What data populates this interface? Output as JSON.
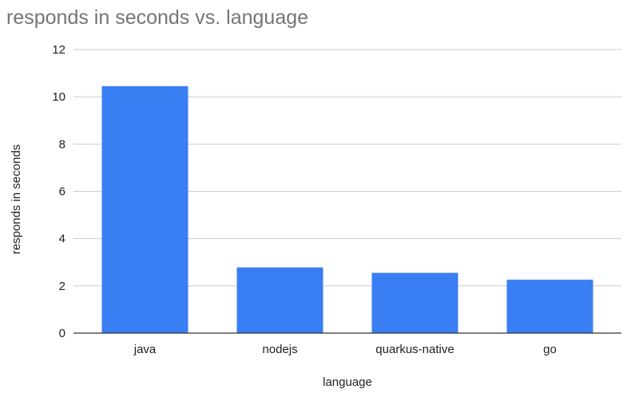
{
  "chart_data": {
    "type": "bar",
    "title": "responds in seconds vs. language",
    "xlabel": "language",
    "ylabel": "responds in seconds",
    "categories": [
      "java",
      "nodejs",
      "quarkus-native",
      "go"
    ],
    "values": [
      10.45,
      2.78,
      2.55,
      2.26
    ],
    "ylim": [
      0,
      12
    ],
    "yticks": [
      "0",
      "2",
      "4",
      "6",
      "8",
      "10",
      "12"
    ],
    "grid": true,
    "legend": "none",
    "bar_color": "#3a7ef3"
  }
}
